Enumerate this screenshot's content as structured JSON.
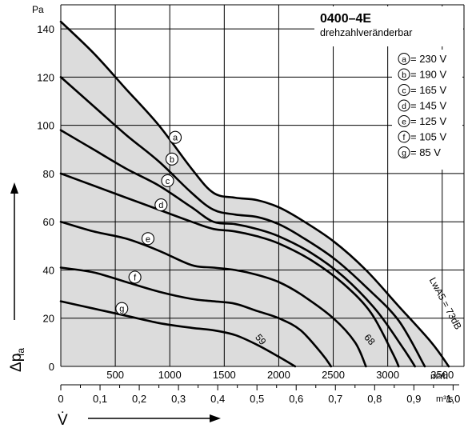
{
  "chart_data": {
    "type": "line",
    "title": "0400–4E",
    "subtitle": "drehzahlveränderbar",
    "ylabel_unit": "Pa",
    "ylabel_symbol": "Δp",
    "ylabel_subscript": "fa",
    "xlabel_symbol": "V̇",
    "x_unit_top": "m³/h",
    "x_unit_bottom": "m³/s",
    "x_range": [
      0,
      3700
    ],
    "y_range": [
      0,
      150
    ],
    "y_ticks": [
      "0",
      "20",
      "40",
      "60",
      "80",
      "100",
      "120",
      "140"
    ],
    "x_ticks_top": [
      "500",
      "1000",
      "1500",
      "2000",
      "2500",
      "3000",
      "3500"
    ],
    "x_ticks_bottom": [
      "0",
      "0,1",
      "0,2",
      "0,3",
      "0,4",
      "0,5",
      "0,6",
      "0,7",
      "0,8",
      "0,9",
      "1,0"
    ],
    "grid": true,
    "legend_position": "top-right",
    "legend": [
      {
        "marker": "a",
        "text": "= 230 V"
      },
      {
        "marker": "b",
        "text": "= 190 V"
      },
      {
        "marker": "c",
        "text": "= 165 V"
      },
      {
        "marker": "d",
        "text": "= 145 V"
      },
      {
        "marker": "e",
        "text": "= 125 V"
      },
      {
        "marker": "f",
        "text": "= 105 V"
      },
      {
        "marker": "g",
        "text": "=  85 V"
      }
    ],
    "series": [
      {
        "marker": "a",
        "marker_at": [
          1050,
          95
        ],
        "points": [
          [
            0,
            143
          ],
          [
            300,
            130
          ],
          [
            600,
            115
          ],
          [
            900,
            100
          ],
          [
            1200,
            82
          ],
          [
            1400,
            72
          ],
          [
            1600,
            70
          ],
          [
            1800,
            69
          ],
          [
            2000,
            66
          ],
          [
            2200,
            61
          ],
          [
            2500,
            52
          ],
          [
            2800,
            40
          ],
          [
            3100,
            25
          ],
          [
            3400,
            10
          ],
          [
            3560,
            0
          ]
        ]
      },
      {
        "marker": "b",
        "marker_at": [
          1020,
          86
        ],
        "points": [
          [
            0,
            120
          ],
          [
            300,
            108
          ],
          [
            600,
            96
          ],
          [
            900,
            85
          ],
          [
            1200,
            72
          ],
          [
            1400,
            65
          ],
          [
            1600,
            63
          ],
          [
            1800,
            62
          ],
          [
            2000,
            59
          ],
          [
            2200,
            54
          ],
          [
            2500,
            45
          ],
          [
            2800,
            33
          ],
          [
            3100,
            19
          ],
          [
            3340,
            0
          ]
        ]
      },
      {
        "marker": "c",
        "marker_at": [
          980,
          77
        ],
        "points": [
          [
            0,
            98
          ],
          [
            300,
            90
          ],
          [
            600,
            82
          ],
          [
            900,
            75
          ],
          [
            1200,
            66
          ],
          [
            1400,
            60
          ],
          [
            1600,
            59
          ],
          [
            1800,
            57
          ],
          [
            2000,
            54
          ],
          [
            2300,
            47
          ],
          [
            2600,
            37
          ],
          [
            2900,
            23
          ],
          [
            3150,
            7
          ],
          [
            3250,
            0
          ]
        ]
      },
      {
        "marker": "d",
        "marker_at": [
          920,
          67
        ],
        "points": [
          [
            0,
            80
          ],
          [
            300,
            75
          ],
          [
            600,
            70
          ],
          [
            900,
            65
          ],
          [
            1200,
            60
          ],
          [
            1400,
            57
          ],
          [
            1600,
            56
          ],
          [
            1800,
            54
          ],
          [
            2000,
            51
          ],
          [
            2300,
            44
          ],
          [
            2600,
            34
          ],
          [
            2850,
            22
          ],
          [
            3050,
            5
          ],
          [
            3100,
            0
          ]
        ]
      },
      {
        "marker": "e",
        "marker_at": [
          800,
          53
        ],
        "points": [
          [
            0,
            60
          ],
          [
            300,
            56
          ],
          [
            600,
            53
          ],
          [
            900,
            48
          ],
          [
            1200,
            42
          ],
          [
            1400,
            41
          ],
          [
            1600,
            40
          ],
          [
            1800,
            38
          ],
          [
            2000,
            35
          ],
          [
            2200,
            30
          ],
          [
            2500,
            20
          ],
          [
            2700,
            10
          ],
          [
            2800,
            0
          ]
        ]
      },
      {
        "marker": "f",
        "marker_at": [
          680,
          37
        ],
        "points": [
          [
            0,
            41
          ],
          [
            300,
            39
          ],
          [
            600,
            35
          ],
          [
            900,
            31
          ],
          [
            1200,
            28
          ],
          [
            1400,
            27
          ],
          [
            1600,
            26
          ],
          [
            1800,
            23
          ],
          [
            2000,
            20
          ],
          [
            2200,
            15
          ],
          [
            2400,
            5
          ],
          [
            2480,
            0
          ]
        ]
      },
      {
        "marker": "g",
        "marker_at": [
          560,
          24
        ],
        "points": [
          [
            0,
            27
          ],
          [
            300,
            24
          ],
          [
            600,
            21
          ],
          [
            900,
            18
          ],
          [
            1200,
            16
          ],
          [
            1400,
            15
          ],
          [
            1600,
            13
          ],
          [
            1800,
            9
          ],
          [
            2000,
            4
          ],
          [
            2150,
            0
          ]
        ]
      }
    ],
    "annotations": [
      {
        "text": "59",
        "at": [
          1780,
          12
        ],
        "rotate": 50
      },
      {
        "text": "68",
        "at": [
          2780,
          12
        ],
        "rotate": 50
      },
      {
        "text": "LwA5 = 73dB",
        "at": [
          3380,
          36
        ],
        "rotate": 62
      }
    ]
  }
}
